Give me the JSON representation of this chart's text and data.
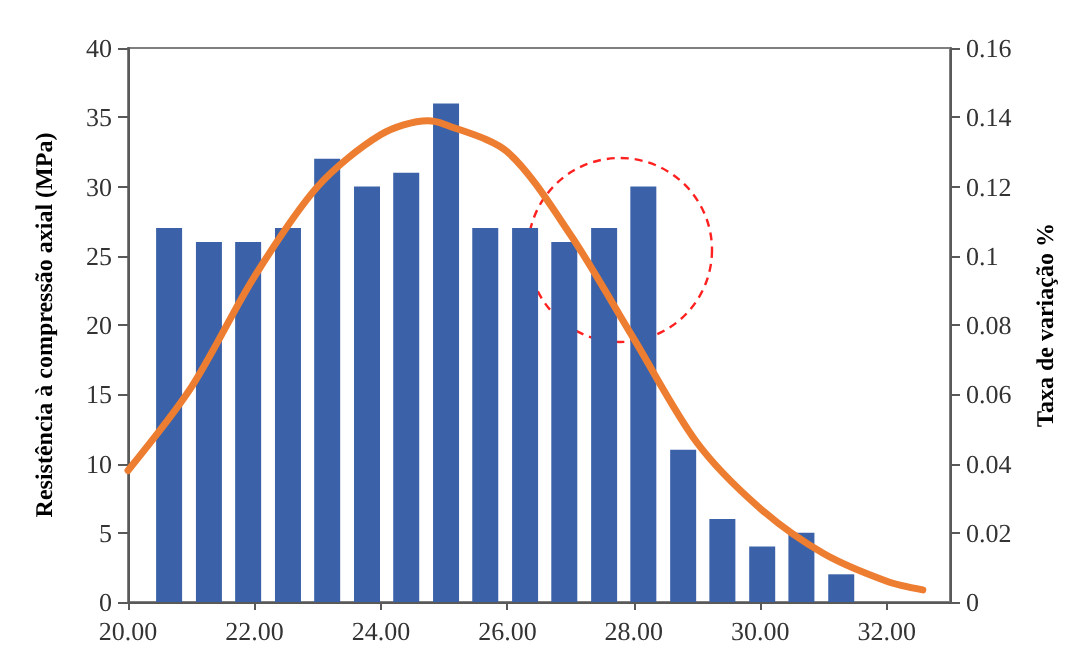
{
  "chart_data": {
    "type": "bar",
    "ylabel": "Resistência à compressão axial (MPa)",
    "y2label": "Taxa de variação %",
    "x": [
      20.65,
      21.28,
      21.9,
      22.53,
      23.15,
      23.78,
      24.4,
      25.03,
      25.65,
      26.28,
      26.9,
      27.53,
      28.15,
      28.78,
      29.4,
      30.03,
      30.65,
      31.28
    ],
    "series": [
      {
        "color": "#3b62a8",
        "values": [
          27,
          26,
          26,
          27,
          32,
          30,
          31,
          36,
          27,
          27,
          26,
          27,
          30,
          11,
          6,
          4,
          5,
          2
        ]
      },
      {
        "type": "line",
        "axis": "y2",
        "color": "#ed7d31",
        "x": [
          20,
          21,
          22,
          23,
          24,
          24.74,
          25,
          26,
          27,
          28,
          29,
          30,
          31,
          32,
          32.57
        ],
        "values": [
          0.038,
          0.062,
          0.094,
          0.12,
          0.135,
          0.139,
          0.138,
          0.13,
          0.106,
          0.076,
          0.046,
          0.027,
          0.014,
          0.006,
          0.0035
        ]
      }
    ],
    "xlim": [
      20,
      33
    ],
    "xticks": [
      {
        "value": 20,
        "label": "20.00"
      },
      {
        "value": 22,
        "label": "22.00"
      },
      {
        "value": 24,
        "label": "24.00"
      },
      {
        "value": 26,
        "label": "26.00"
      },
      {
        "value": 28,
        "label": "28.00"
      },
      {
        "value": 30,
        "label": "30.00"
      },
      {
        "value": 32,
        "label": "32.00"
      }
    ],
    "ylim": [
      0,
      40
    ],
    "yticks": [
      0,
      5,
      10,
      15,
      20,
      25,
      30,
      35,
      40
    ],
    "y2lim": [
      0,
      0.16
    ],
    "y2ticks": [
      0,
      0.02,
      0.04,
      0.06,
      0.08,
      0.1,
      0.12,
      0.14,
      0.16
    ],
    "grid": false,
    "marker": "none",
    "line_style": "solid"
  }
}
